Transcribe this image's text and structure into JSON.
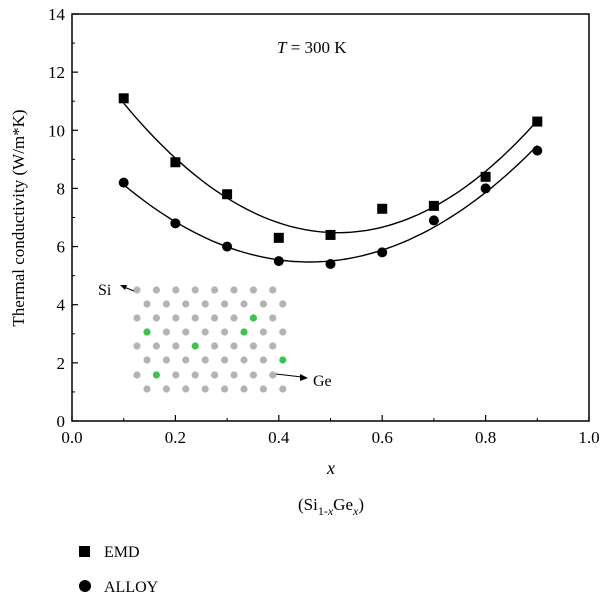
{
  "chart_data": {
    "type": "scatter",
    "title": "",
    "xlabel": "x",
    "xlabel_sub": "(Si1-xGex)",
    "ylabel": "Thermal conductivity (W/m*K)",
    "xlim": [
      0.0,
      1.0
    ],
    "ylim": [
      0,
      14
    ],
    "x_ticks": [
      "0.0",
      "0.2",
      "0.4",
      "0.6",
      "0.8",
      "1.0"
    ],
    "y_ticks": [
      "0",
      "2",
      "4",
      "6",
      "8",
      "10",
      "12",
      "14"
    ],
    "annotation": {
      "var": "T",
      "rest": " = 300 K"
    },
    "series": [
      {
        "name": "EMD",
        "marker": "square",
        "x": [
          0.1,
          0.2,
          0.3,
          0.4,
          0.5,
          0.6,
          0.7,
          0.8,
          0.9
        ],
        "y": [
          11.1,
          8.9,
          7.8,
          6.3,
          6.4,
          7.3,
          7.4,
          8.4,
          10.3
        ]
      },
      {
        "name": "ALLOY",
        "marker": "circle",
        "x": [
          0.1,
          0.2,
          0.3,
          0.4,
          0.5,
          0.6,
          0.7,
          0.8,
          0.9
        ],
        "y": [
          8.2,
          6.8,
          6.0,
          5.5,
          5.4,
          5.8,
          6.9,
          8.0,
          9.3
        ]
      }
    ],
    "inset": {
      "si_label": "Si",
      "ge_label": "Ge",
      "atom_color": "#b3b3b3",
      "ge_color": "#3ec34a"
    },
    "legend": {
      "placement": "bottom-left"
    }
  }
}
